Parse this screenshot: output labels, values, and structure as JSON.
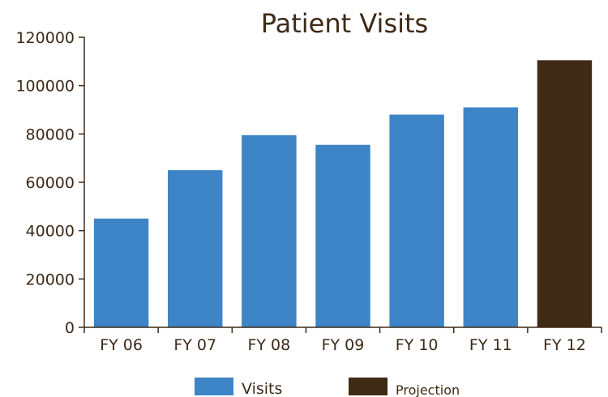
{
  "chart_data": {
    "type": "bar",
    "title": "Patient Visits",
    "xlabel": "",
    "ylabel": "",
    "categories": [
      "FY 06",
      "FY 07",
      "FY 08",
      "FY 09",
      "FY 10",
      "FY 11",
      "FY 12"
    ],
    "series": [
      {
        "name": "Visits",
        "color": "#3d85c6",
        "values": [
          45000,
          65000,
          79500,
          75500,
          88000,
          91000,
          null
        ]
      },
      {
        "name": "Projection",
        "color": "#3f2a16",
        "values": [
          null,
          null,
          null,
          null,
          null,
          null,
          110500
        ]
      }
    ],
    "ylim": [
      0,
      120000
    ],
    "yticks": [
      0,
      20000,
      40000,
      60000,
      80000,
      100000,
      120000
    ],
    "grid": false,
    "legend_position": "bottom"
  }
}
